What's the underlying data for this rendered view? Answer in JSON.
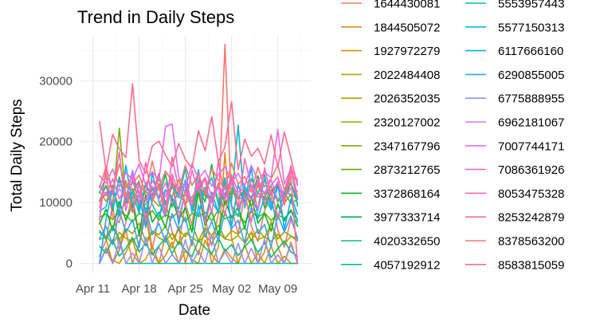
{
  "chart_data": {
    "type": "line",
    "title": "Trend in Daily Steps",
    "xlabel": "Date",
    "ylabel": "Total Daily Steps",
    "x_ticks": [
      "Apr 11",
      "Apr 18",
      "Apr 25",
      "May 02",
      "May 09"
    ],
    "y_ticks": [
      "0",
      "10000",
      "20000",
      "30000"
    ],
    "ylim": [
      -1500,
      37500
    ],
    "xlim": [
      "2016-04-09",
      "2016-05-14"
    ],
    "grid": true,
    "legend_position": "right",
    "legend_columns": 2,
    "x_start": "2016-04-12",
    "x_end": "2016-05-12",
    "series": [
      {
        "name": "1644430081",
        "color": "#F8766D",
        "values": [
          1200,
          3800,
          9500,
          2100,
          6800,
          11200,
          4500,
          8900,
          2400,
          7600,
          10300,
          5200,
          3100,
          9800,
          6400,
          12800,
          7400,
          2900,
          8100,
          36000,
          9300,
          4700,
          11800,
          6100,
          3600,
          8700,
          10900,
          5500,
          2700,
          7300,
          4200
        ]
      },
      {
        "name": "1844505072",
        "color": "#E7861B",
        "values": [
          6800,
          4100,
          0,
          2200,
          5600,
          0,
          3300,
          7900,
          1800,
          0,
          4600,
          2500,
          6200,
          0,
          3900,
          1400,
          5800,
          0,
          2700,
          18200,
          4200,
          0,
          3100,
          5200,
          0,
          1900,
          6900,
          2800,
          0,
          3500,
          0
        ]
      },
      {
        "name": "1927972279",
        "color": "#D39200",
        "values": [
          0,
          2600,
          500,
          0,
          1800,
          4000,
          0,
          700,
          2900,
          0,
          1300,
          3500,
          0,
          2100,
          600,
          0,
          3800,
          1500,
          0,
          2400,
          900,
          0,
          3100,
          0,
          1700,
          0,
          2800,
          0,
          1200,
          0,
          0
        ]
      },
      {
        "name": "2022484408",
        "color": "#BF9B00",
        "values": [
          11800,
          10200,
          12400,
          9100,
          13600,
          8700,
          11300,
          12900,
          10600,
          9400,
          12100,
          11000,
          13800,
          9800,
          10900,
          12600,
          11500,
          10100,
          13200,
          9600,
          12300,
          10800,
          11700,
          9300,
          12800,
          10400,
          11900,
          13100,
          9900,
          11400,
          10700
        ]
      },
      {
        "name": "2026352035",
        "color": "#AAA200",
        "values": [
          3900,
          4500,
          3200,
          5100,
          4100,
          3600,
          4800,
          2900,
          5300,
          4200,
          3700,
          4900,
          3100,
          5000,
          4300,
          3500,
          4700,
          3300,
          5200,
          4000,
          3800,
          4600,
          3400,
          5100,
          3900,
          4400,
          3600,
          4800,
          3200,
          4500,
          4100
        ]
      },
      {
        "name": "2320127002",
        "color": "#93AA00",
        "values": [
          5100,
          4300,
          6200,
          3800,
          5700,
          4900,
          6600,
          3600,
          5300,
          4700,
          6100,
          3900,
          5500,
          4400,
          6400,
          3700,
          5900,
          4600,
          6300,
          4100,
          5400,
          4800,
          6000,
          3800,
          5600,
          4200,
          6500,
          4000,
          5200,
          4500,
          3700
        ]
      },
      {
        "name": "2347167796",
        "color": "#7AAF00",
        "values": [
          10200,
          11400,
          9800,
          22200,
          10700,
          12300,
          9500,
          11900,
          10400,
          13100,
          9900,
          12600,
          10800,
          11300,
          9600,
          12400,
          11100,
          10300,
          13000,
          9700,
          11800,
          10600,
          12200,
          9400,
          11500,
          10900,
          12700,
          10100,
          11600,
          9900,
          10500
        ]
      },
      {
        "name": "2873212765",
        "color": "#5BB300",
        "values": [
          7600,
          8100,
          7200,
          8500,
          7900,
          6800,
          8300,
          7400,
          8700,
          7100,
          8000,
          7500,
          8600,
          6900,
          8200,
          7700,
          8400,
          7000,
          8800,
          7300,
          7800,
          8100,
          6700,
          8500,
          7600,
          8300,
          7100,
          8000,
          7400,
          8600,
          7200
        ]
      },
      {
        "name": "3372868164",
        "color": "#00B81F",
        "values": [
          6500,
          8900,
          5400,
          10200,
          7100,
          9600,
          4800,
          11300,
          6800,
          8400,
          5900,
          10700,
          7300,
          9100,
          5100,
          11800,
          6200,
          8700,
          4600,
          10400,
          7500,
          9300,
          5700,
          11000,
          6600,
          8200,
          5300,
          9800,
          7000,
          8800,
          6100
        ]
      },
      {
        "name": "3977333714",
        "color": "#00BB4E",
        "values": [
          10300,
          12800,
          8600,
          14200,
          9900,
          11700,
          13500,
          8400,
          12300,
          10800,
          14700,
          9300,
          11900,
          13100,
          8900,
          12600,
          10100,
          16300,
          9600,
          11400,
          13800,
          8700,
          12100,
          10600,
          14400,
          9100,
          11800,
          12900,
          10400,
          13300,
          9800
        ]
      },
      {
        "name": "4020332650",
        "color": "#00BF7D",
        "values": [
          2800,
          1700,
          3900,
          1200,
          2500,
          4300,
          1900,
          3300,
          1400,
          2900,
          4100,
          1600,
          3600,
          2200,
          1100,
          3800,
          2600,
          1500,
          4200,
          2000,
          3100,
          1300,
          2700,
          3900,
          1800,
          3400,
          1000,
          2400,
          3700,
          1900,
          1200
        ]
      },
      {
        "name": "4057192912",
        "color": "#00C1A3",
        "values": [
          5400,
          3900,
          5900,
          4100,
          0,
          0,
          0,
          0,
          0,
          0,
          0,
          0,
          0,
          0,
          0,
          0,
          0,
          0,
          0,
          0,
          0,
          0,
          0,
          0,
          0,
          0,
          0,
          0,
          0,
          0,
          0
        ]
      },
      {
        "name": "5553957443",
        "color": "#00BFC4",
        "values": [
          11600,
          14300,
          9200,
          13700,
          10500,
          15100,
          8800,
          12900,
          11200,
          14800,
          9600,
          13400,
          10900,
          15600,
          8400,
          12200,
          11900,
          14100,
          9800,
          13200,
          10300,
          22700,
          9100,
          13900,
          11500,
          14600,
          8900,
          12600,
          11000,
          15900,
          9400
        ]
      },
      {
        "name": "5577150313",
        "color": "#00BAE0",
        "values": [
          8600,
          9300,
          12900,
          7800,
          10400,
          11800,
          8200,
          13300,
          9700,
          7500,
          12100,
          10800,
          8900,
          13700,
          9100,
          7900,
          12500,
          10200,
          8400,
          13100,
          9500,
          7700,
          12700,
          10600,
          8700,
          13900,
          9900,
          7300,
          12300,
          11100,
          8100
        ]
      },
      {
        "name": "6117666160",
        "color": "#00B0F6",
        "values": [
          0,
          7300,
          12400,
          8100,
          16100,
          9600,
          11300,
          5900,
          14900,
          10200,
          7700,
          13600,
          6400,
          12200,
          9000,
          15400,
          7000,
          11700,
          8300,
          14100,
          6100,
          12900,
          9800,
          15800,
          7400,
          11000,
          8800,
          13300,
          5600,
          10600,
          6800
        ]
      },
      {
        "name": "6290855005",
        "color": "#35A2FF",
        "values": [
          4100,
          6100,
          3100,
          8700,
          5100,
          7200,
          2600,
          9100,
          4700,
          6600,
          3500,
          8200,
          5400,
          7600,
          2900,
          9600,
          4300,
          6900,
          3700,
          8500,
          5700,
          7100,
          3300,
          9300,
          4900,
          6400,
          2700,
          8000,
          5200,
          7800,
          3900
        ]
      },
      {
        "name": "6775888955",
        "color": "#9590FF",
        "values": [
          0,
          2300,
          0,
          3600,
          0,
          1700,
          0,
          4300,
          0,
          2800,
          0,
          1500,
          0,
          3900,
          0,
          2100,
          0,
          4700,
          0,
          1900,
          0,
          3300,
          0,
          2500,
          0,
          4000,
          0,
          1400,
          0,
          3100,
          0
        ]
      },
      {
        "name": "6962181067",
        "color": "#C77CFF",
        "values": [
          10300,
          11700,
          9900,
          12300,
          10800,
          15300,
          11100,
          9600,
          12700,
          10500,
          13300,
          9800,
          11500,
          12100,
          10200,
          13500,
          11900,
          10000,
          12500,
          10700,
          13100,
          11300,
          9700,
          12900,
          10900,
          11600,
          13700,
          10400,
          12000,
          15300,
          10600
        ]
      },
      {
        "name": "7007744171",
        "color": "#E76BF3",
        "values": [
          14400,
          13200,
          15500,
          12600,
          14900,
          13800,
          16300,
          12900,
          15100,
          13500,
          22500,
          22900,
          14200,
          12400,
          16400,
          13900,
          15300,
          12700,
          14600,
          15900,
          13300,
          14800,
          12800,
          16100,
          13600,
          15000,
          14100,
          22000,
          13000,
          15600,
          13700
        ]
      },
      {
        "name": "7086361926",
        "color": "#FA62DB",
        "values": [
          12800,
          11200,
          13900,
          10600,
          12500,
          14300,
          11800,
          10300,
          13600,
          12100,
          10900,
          14700,
          11500,
          13300,
          10100,
          12700,
          14100,
          11000,
          13000,
          10800,
          14500,
          11700,
          12300,
          10400,
          13800,
          11300,
          12900,
          14200,
          10700,
          12400,
          11900
        ]
      },
      {
        "name": "8053475328",
        "color": "#FF62BC",
        "values": [
          7100,
          15900,
          11300,
          18300,
          8700,
          13800,
          9800,
          16600,
          10600,
          14700,
          8300,
          17500,
          12200,
          9400,
          15300,
          11800,
          13900,
          8100,
          16900,
          10300,
          14400,
          9200,
          17200,
          12600,
          8800,
          15700,
          11100,
          13400,
          9600,
          16100,
          10900
        ]
      },
      {
        "name": "8253242879",
        "color": "#FF6C91",
        "values": [
          9100,
          14900,
          7600,
          6700,
          11600,
          8400,
          13300,
          6900,
          10200,
          12600,
          8000,
          14100,
          7300,
          11900,
          9500,
          13700,
          6500,
          10800,
          12900,
          7800,
          14600,
          8900,
          11200,
          6800,
          13500,
          9800,
          12100,
          7500,
          10500,
          14300,
          0
        ]
      },
      {
        "name": "8378563200",
        "color": "#F8766D",
        "values": [
          12400,
          15900,
          11800,
          16300,
          12700,
          13100,
          14500,
          11600,
          16800,
          12300,
          15200,
          13400,
          11900,
          16100,
          12800,
          14700,
          11400,
          15600,
          13700,
          12100,
          16500,
          13000,
          14300,
          11700,
          15800,
          12600,
          13900,
          16200,
          12000,
          14900,
          13300
        ]
      },
      {
        "name": "8583815059",
        "color": "#FF6C91",
        "values": [
          23300,
          15200,
          21200,
          18800,
          17400,
          29500,
          16900,
          14800,
          19300,
          20100,
          17800,
          15900,
          19700,
          17100,
          15600,
          21800,
          18500,
          24100,
          16700,
          19100,
          26600,
          15400,
          20400,
          17600,
          18900,
          16300,
          21100,
          15800,
          21600,
          17300,
          12800
        ]
      }
    ]
  }
}
